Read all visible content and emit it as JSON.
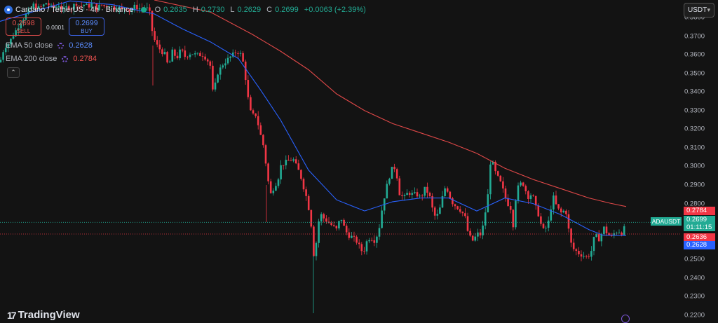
{
  "header": {
    "title": "Cardano / TetherUS · 4h · Binance",
    "ohlc": [
      {
        "label": "O",
        "value": "0.2635"
      },
      {
        "label": "H",
        "value": "0.2730"
      },
      {
        "label": "L",
        "value": "0.2629"
      },
      {
        "label": "C",
        "value": "0.2699"
      }
    ],
    "change": "+0.0063 (+2.39%)"
  },
  "trade": {
    "sell_price": "0.2698",
    "sell_label": "SELL",
    "spread": "0.0001",
    "buy_price": "0.2699",
    "buy_label": "BUY"
  },
  "indicators": [
    {
      "name": "EMA 50 close",
      "value": "0.2628",
      "color": "#5b8cff"
    },
    {
      "name": "EMA 200 close",
      "value": "0.2784",
      "color": "#ef5350"
    }
  ],
  "collapse_icon": "chevron-up-icon",
  "currency_selector": "USDT",
  "price_scale": [
    "0.3800",
    "0.3700",
    "0.3600",
    "0.3500",
    "0.3400",
    "0.3300",
    "0.3200",
    "0.3100",
    "0.3000",
    "0.2900",
    "0.2800",
    "0.2500",
    "0.2400",
    "0.2300",
    "0.2200"
  ],
  "price_tags": {
    "ema200": "0.2784",
    "last_price": "0.2699",
    "countdown": "01:11:15",
    "ema50_red": "0.2636",
    "ema50_blue": "0.2628"
  },
  "symbol": "ADAUSDT",
  "logo_text": "TradingView",
  "colors": {
    "up": "#22ab94",
    "down": "#f23645",
    "ema50": "#2962ff",
    "ema200": "#e04848",
    "bg": "#131313"
  },
  "chart_data": {
    "type": "candlestick",
    "ylim": [
      0.218,
      0.3895
    ],
    "price_path": [
      [
        0,
        0.356
      ],
      [
        6,
        0.364
      ],
      [
        12,
        0.366
      ],
      [
        18,
        0.37
      ],
      [
        24,
        0.374
      ],
      [
        30,
        0.378
      ],
      [
        36,
        0.381
      ],
      [
        42,
        0.384
      ],
      [
        48,
        0.387
      ],
      [
        54,
        0.385
      ],
      [
        60,
        0.386
      ],
      [
        66,
        0.388
      ],
      [
        72,
        0.386
      ],
      [
        78,
        0.385
      ],
      [
        84,
        0.387
      ],
      [
        90,
        0.384
      ],
      [
        96,
        0.386
      ],
      [
        102,
        0.385
      ],
      [
        108,
        0.388
      ],
      [
        114,
        0.386
      ],
      [
        120,
        0.387
      ],
      [
        126,
        0.386
      ],
      [
        132,
        0.388
      ],
      [
        138,
        0.385
      ],
      [
        144,
        0.387
      ],
      [
        150,
        0.386
      ],
      [
        156,
        0.387
      ],
      [
        162,
        0.385
      ],
      [
        168,
        0.386
      ],
      [
        174,
        0.384
      ],
      [
        180,
        0.386
      ],
      [
        186,
        0.383
      ],
      [
        192,
        0.386
      ],
      [
        198,
        0.385
      ],
      [
        204,
        0.385
      ],
      [
        208,
        0.386
      ],
      [
        214,
        0.382
      ],
      [
        218,
        0.37
      ],
      [
        224,
        0.365
      ],
      [
        230,
        0.362
      ],
      [
        236,
        0.36
      ],
      [
        240,
        0.353
      ],
      [
        246,
        0.362
      ],
      [
        252,
        0.358
      ],
      [
        258,
        0.363
      ],
      [
        264,
        0.359
      ],
      [
        272,
        0.361
      ],
      [
        280,
        0.36
      ],
      [
        290,
        0.36
      ],
      [
        296,
        0.357
      ],
      [
        300,
        0.354
      ],
      [
        304,
        0.338
      ],
      [
        310,
        0.35
      ],
      [
        318,
        0.355
      ],
      [
        326,
        0.358
      ],
      [
        332,
        0.36
      ],
      [
        338,
        0.362
      ],
      [
        344,
        0.36
      ],
      [
        348,
        0.354
      ],
      [
        352,
        0.342
      ],
      [
        356,
        0.33
      ],
      [
        362,
        0.327
      ],
      [
        366,
        0.328
      ],
      [
        370,
        0.318
      ],
      [
        374,
        0.315
      ],
      [
        378,
        0.305
      ],
      [
        382,
        0.293
      ],
      [
        386,
        0.285
      ],
      [
        392,
        0.29
      ],
      [
        396,
        0.292
      ],
      [
        400,
        0.3
      ],
      [
        406,
        0.302
      ],
      [
        412,
        0.303
      ],
      [
        418,
        0.304
      ],
      [
        424,
        0.299
      ],
      [
        428,
        0.296
      ],
      [
        432,
        0.29
      ],
      [
        436,
        0.285
      ],
      [
        440,
        0.278
      ],
      [
        444,
        0.268
      ],
      [
        448,
        0.25
      ],
      [
        452,
        0.262
      ],
      [
        456,
        0.275
      ],
      [
        462,
        0.272
      ],
      [
        468,
        0.27
      ],
      [
        474,
        0.268
      ],
      [
        480,
        0.266
      ],
      [
        486,
        0.273
      ],
      [
        490,
        0.268
      ],
      [
        496,
        0.263
      ],
      [
        502,
        0.262
      ],
      [
        508,
        0.26
      ],
      [
        514,
        0.256
      ],
      [
        518,
        0.253
      ],
      [
        522,
        0.259
      ],
      [
        528,
        0.262
      ],
      [
        534,
        0.26
      ],
      [
        540,
        0.265
      ],
      [
        546,
        0.28
      ],
      [
        552,
        0.29
      ],
      [
        558,
        0.298
      ],
      [
        562,
        0.3
      ],
      [
        566,
        0.295
      ],
      [
        570,
        0.285
      ],
      [
        576,
        0.283
      ],
      [
        582,
        0.286
      ],
      [
        588,
        0.285
      ],
      [
        594,
        0.285
      ],
      [
        600,
        0.283
      ],
      [
        606,
        0.288
      ],
      [
        612,
        0.285
      ],
      [
        618,
        0.275
      ],
      [
        622,
        0.272
      ],
      [
        628,
        0.278
      ],
      [
        632,
        0.285
      ],
      [
        636,
        0.29
      ],
      [
        640,
        0.285
      ],
      [
        646,
        0.28
      ],
      [
        652,
        0.278
      ],
      [
        658,
        0.276
      ],
      [
        664,
        0.272
      ],
      [
        668,
        0.263
      ],
      [
        674,
        0.26
      ],
      [
        678,
        0.262
      ],
      [
        682,
        0.264
      ],
      [
        686,
        0.263
      ],
      [
        690,
        0.27
      ],
      [
        696,
        0.285
      ],
      [
        700,
        0.305
      ],
      [
        704,
        0.3
      ],
      [
        708,
        0.295
      ],
      [
        712,
        0.293
      ],
      [
        716,
        0.289
      ],
      [
        720,
        0.284
      ],
      [
        724,
        0.28
      ],
      [
        728,
        0.278
      ],
      [
        732,
        0.268
      ],
      [
        736,
        0.285
      ],
      [
        740,
        0.29
      ],
      [
        744,
        0.291
      ],
      [
        748,
        0.29
      ],
      [
        752,
        0.283
      ],
      [
        756,
        0.285
      ],
      [
        760,
        0.284
      ],
      [
        764,
        0.278
      ],
      [
        768,
        0.274
      ],
      [
        772,
        0.268
      ],
      [
        776,
        0.265
      ],
      [
        780,
        0.268
      ],
      [
        784,
        0.272
      ],
      [
        788,
        0.285
      ],
      [
        792,
        0.28
      ],
      [
        796,
        0.277
      ],
      [
        800,
        0.275
      ],
      [
        804,
        0.276
      ],
      [
        808,
        0.275
      ],
      [
        812,
        0.263
      ],
      [
        816,
        0.256
      ],
      [
        820,
        0.255
      ],
      [
        826,
        0.253
      ],
      [
        832,
        0.252
      ],
      [
        838,
        0.251
      ],
      [
        844,
        0.255
      ],
      [
        848,
        0.263
      ],
      [
        852,
        0.262
      ],
      [
        856,
        0.26
      ],
      [
        860,
        0.268
      ],
      [
        864,
        0.265
      ],
      [
        868,
        0.263
      ],
      [
        872,
        0.262
      ],
      [
        876,
        0.264
      ],
      [
        880,
        0.265
      ],
      [
        884,
        0.265
      ],
      [
        888,
        0.264
      ],
      [
        893,
        0.27
      ]
    ],
    "ema50": [
      [
        0,
        0.378
      ],
      [
        100,
        0.389
      ],
      [
        160,
        0.387
      ],
      [
        220,
        0.382
      ],
      [
        260,
        0.374
      ],
      [
        300,
        0.367
      ],
      [
        340,
        0.358
      ],
      [
        370,
        0.342
      ],
      [
        400,
        0.325
      ],
      [
        440,
        0.298
      ],
      [
        480,
        0.282
      ],
      [
        520,
        0.276
      ],
      [
        560,
        0.281
      ],
      [
        600,
        0.283
      ],
      [
        640,
        0.283
      ],
      [
        680,
        0.276
      ],
      [
        720,
        0.283
      ],
      [
        760,
        0.28
      ],
      [
        800,
        0.274
      ],
      [
        840,
        0.266
      ],
      [
        860,
        0.263
      ],
      [
        893,
        0.2628
      ]
    ],
    "ema200": [
      [
        220,
        0.3895
      ],
      [
        300,
        0.383
      ],
      [
        360,
        0.371
      ],
      [
        400,
        0.362
      ],
      [
        440,
        0.352
      ],
      [
        480,
        0.339
      ],
      [
        520,
        0.33
      ],
      [
        560,
        0.323
      ],
      [
        600,
        0.318
      ],
      [
        640,
        0.313
      ],
      [
        680,
        0.307
      ],
      [
        720,
        0.299
      ],
      [
        760,
        0.293
      ],
      [
        800,
        0.288
      ],
      [
        840,
        0.283
      ],
      [
        870,
        0.2802
      ],
      [
        893,
        0.2784
      ]
    ]
  }
}
